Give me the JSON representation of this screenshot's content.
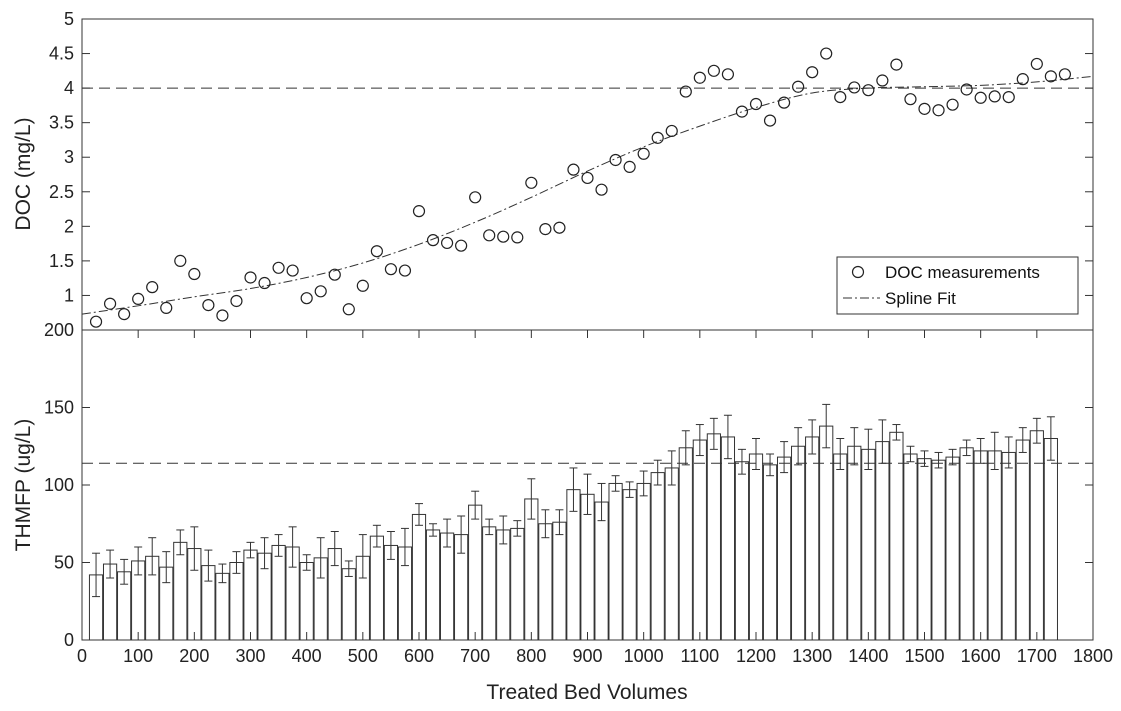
{
  "chart_data": [
    {
      "type": "scatter",
      "title": "",
      "ylabel": "DOC (mg/L)",
      "xlim": [
        0,
        1800
      ],
      "ylim": [
        0.5,
        5
      ],
      "yticks": [
        0.5,
        1,
        1.5,
        2,
        2.5,
        3,
        3.5,
        4,
        4.5,
        5
      ],
      "ytick_labels": [
        "",
        "1",
        "1.5",
        "2",
        "2.5",
        "3",
        "3.5",
        "4",
        "4.5",
        "5"
      ],
      "reference_line": 4,
      "legend": {
        "placement": "bottom-right",
        "entries": [
          "DOC measurements",
          "Spline Fit"
        ]
      },
      "series": [
        {
          "name": "DOC measurements",
          "marker": "open-circle",
          "x": [
            25,
            50,
            75,
            100,
            125,
            150,
            175,
            200,
            225,
            250,
            275,
            300,
            325,
            350,
            375,
            400,
            425,
            450,
            475,
            500,
            525,
            550,
            575,
            600,
            625,
            650,
            675,
            700,
            725,
            750,
            775,
            800,
            825,
            850,
            875,
            900,
            925,
            950,
            975,
            1000,
            1025,
            1050,
            1075,
            1100,
            1125,
            1150,
            1175,
            1200,
            1225,
            1250,
            1275,
            1300,
            1325,
            1350,
            1375,
            1400,
            1425,
            1450,
            1475,
            1500,
            1525,
            1550,
            1575,
            1600,
            1625,
            1650,
            1675,
            1700,
            1725,
            1750
          ],
          "y": [
            0.62,
            0.88,
            0.73,
            0.95,
            1.12,
            0.82,
            1.5,
            1.31,
            0.86,
            0.71,
            0.92,
            1.26,
            1.18,
            1.4,
            1.36,
            0.96,
            1.06,
            1.3,
            0.8,
            1.14,
            1.64,
            1.38,
            1.36,
            2.22,
            1.8,
            1.76,
            1.72,
            2.42,
            1.87,
            1.85,
            1.84,
            2.63,
            1.96,
            1.98,
            2.82,
            2.7,
            2.53,
            2.96,
            2.86,
            3.05,
            3.28,
            3.38,
            3.95,
            4.15,
            4.25,
            4.2,
            3.66,
            3.77,
            3.53,
            3.79,
            4.02,
            4.23,
            4.5,
            3.87,
            4.01,
            3.97,
            4.11,
            4.34,
            3.84,
            3.7,
            3.68,
            3.76,
            3.98,
            3.86,
            3.88,
            3.87,
            4.13,
            4.35,
            4.17,
            4.2
          ]
        },
        {
          "name": "Spline Fit",
          "line_style": "dash-dot",
          "x": [
            0,
            100,
            200,
            300,
            400,
            500,
            600,
            700,
            800,
            900,
            1000,
            1100,
            1200,
            1300,
            1400,
            1500,
            1600,
            1700,
            1800
          ],
          "y": [
            0.73,
            0.85,
            0.98,
            1.1,
            1.26,
            1.47,
            1.74,
            2.06,
            2.42,
            2.8,
            3.15,
            3.45,
            3.72,
            3.93,
            4.0,
            4.02,
            4.04,
            4.09,
            4.17
          ]
        }
      ]
    },
    {
      "type": "bar",
      "title": "",
      "xlabel": "Treated Bed Volumes",
      "ylabel": "THMFP (ug/L)",
      "xlim": [
        0,
        1800
      ],
      "ylim": [
        0,
        200
      ],
      "xticks": [
        0,
        100,
        200,
        300,
        400,
        500,
        600,
        700,
        800,
        900,
        1000,
        1100,
        1200,
        1300,
        1400,
        1500,
        1600,
        1700,
        1800
      ],
      "xtick_labels": [
        "0",
        "100",
        "200",
        "300",
        "400",
        "500",
        "600",
        "700",
        "800",
        "900",
        "1000",
        "1100",
        "1200",
        "1300",
        "1400",
        "1500",
        "1600",
        "1700",
        "1800"
      ],
      "yticks": [
        0,
        50,
        100,
        150,
        200
      ],
      "ytick_labels": [
        "0",
        "50",
        "100",
        "150",
        "200"
      ],
      "reference_line": 114,
      "error_bars": true,
      "series": [
        {
          "name": "",
          "x": [
            25,
            50,
            75,
            100,
            125,
            150,
            175,
            200,
            225,
            250,
            275,
            300,
            325,
            350,
            375,
            400,
            425,
            450,
            475,
            500,
            525,
            550,
            575,
            600,
            625,
            650,
            675,
            700,
            725,
            750,
            775,
            800,
            825,
            850,
            875,
            900,
            925,
            950,
            975,
            1000,
            1025,
            1050,
            1075,
            1100,
            1125,
            1150,
            1175,
            1200,
            1225,
            1250,
            1275,
            1300,
            1325,
            1350,
            1375,
            1400,
            1425,
            1450,
            1475,
            1500,
            1525,
            1550,
            1575,
            1600,
            1625,
            1650,
            1675,
            1700,
            1725
          ],
          "values": [
            42,
            49,
            44,
            51,
            54,
            47,
            63,
            59,
            48,
            43,
            50,
            58,
            56,
            61,
            60,
            50,
            53,
            59,
            46,
            54,
            67,
            61,
            60,
            81,
            71,
            69,
            68,
            87,
            73,
            71,
            72,
            91,
            75,
            76,
            97,
            94,
            89,
            101,
            97,
            101,
            108,
            111,
            124,
            129,
            133,
            131,
            115,
            120,
            113,
            118,
            125,
            131,
            138,
            120,
            125,
            123,
            128,
            134,
            120,
            117,
            116,
            118,
            124,
            122,
            122,
            121,
            129,
            135,
            130
          ],
          "errors": [
            14,
            9,
            8,
            9,
            12,
            10,
            8,
            14,
            10,
            6,
            7,
            5,
            10,
            7,
            13,
            5,
            13,
            11,
            5,
            14,
            7,
            9,
            12,
            7,
            4,
            9,
            12,
            9,
            5,
            9,
            5,
            13,
            9,
            8,
            14,
            13,
            12,
            5,
            5,
            8,
            8,
            11,
            11,
            10,
            10,
            14,
            8,
            10,
            7,
            10,
            12,
            11,
            14,
            10,
            12,
            13,
            14,
            5,
            5,
            5,
            5,
            5,
            5,
            8,
            12,
            10,
            8,
            8,
            14
          ]
        }
      ]
    }
  ]
}
